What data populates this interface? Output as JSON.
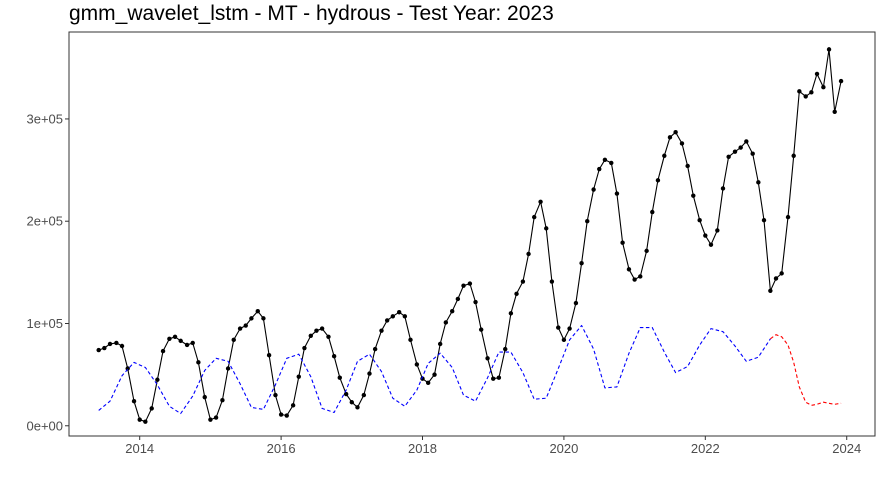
{
  "chart_data": {
    "type": "line",
    "title": "gmm_wavelet_lstm - MT - hydrous - Test Year: 2023",
    "xlabel": "",
    "ylabel": "",
    "x_range": [
      2013.0,
      2024.4
    ],
    "ylim": [
      -10000,
      385000
    ],
    "x_ticks": [
      {
        "value": 2014,
        "label": "2014"
      },
      {
        "value": 2016,
        "label": "2016"
      },
      {
        "value": 2018,
        "label": "2018"
      },
      {
        "value": 2020,
        "label": "2020"
      },
      {
        "value": 2022,
        "label": "2022"
      },
      {
        "value": 2024,
        "label": "2024"
      }
    ],
    "y_ticks": [
      {
        "value": 0,
        "label": "0e+00"
      },
      {
        "value": 100000,
        "label": "1e+05"
      },
      {
        "value": 200000,
        "label": "2e+05"
      },
      {
        "value": 300000,
        "label": "3e+05"
      }
    ],
    "grid": false,
    "legend": "none",
    "series": [
      {
        "style": "solid-with-points",
        "color": "#000000",
        "x": [
          2013.42,
          2013.5,
          2013.58,
          2013.67,
          2013.75,
          2013.83,
          2013.92,
          2014.0,
          2014.08,
          2014.17,
          2014.25,
          2014.33,
          2014.42,
          2014.5,
          2014.58,
          2014.67,
          2014.75,
          2014.83,
          2014.92,
          2015.0,
          2015.08,
          2015.17,
          2015.25,
          2015.33,
          2015.42,
          2015.5,
          2015.58,
          2015.67,
          2015.75,
          2015.83,
          2015.92,
          2016.0,
          2016.08,
          2016.17,
          2016.25,
          2016.33,
          2016.42,
          2016.5,
          2016.58,
          2016.67,
          2016.75,
          2016.83,
          2016.92,
          2017.0,
          2017.08,
          2017.17,
          2017.25,
          2017.33,
          2017.42,
          2017.5,
          2017.58,
          2017.67,
          2017.75,
          2017.83,
          2017.92,
          2018.0,
          2018.08,
          2018.17,
          2018.25,
          2018.33,
          2018.42,
          2018.5,
          2018.58,
          2018.67,
          2018.75,
          2018.83,
          2018.92,
          2019.0,
          2019.08,
          2019.17,
          2019.25,
          2019.33,
          2019.42,
          2019.5,
          2019.58,
          2019.67,
          2019.75,
          2019.83,
          2019.92,
          2020.0,
          2020.08,
          2020.17,
          2020.25,
          2020.33,
          2020.42,
          2020.5,
          2020.58,
          2020.67,
          2020.75,
          2020.83,
          2020.92,
          2021.0,
          2021.08,
          2021.17,
          2021.25,
          2021.33,
          2021.42,
          2021.5,
          2021.58,
          2021.67,
          2021.75,
          2021.83,
          2021.92,
          2022.0,
          2022.08,
          2022.17,
          2022.25,
          2022.33,
          2022.42,
          2022.5,
          2022.58,
          2022.67,
          2022.75,
          2022.83,
          2022.92,
          2023.0,
          2023.08,
          2023.17,
          2023.25,
          2023.33,
          2023.42,
          2023.5,
          2023.58,
          2023.67,
          2023.75,
          2023.83,
          2023.92
        ],
        "y": [
          74000,
          76000,
          80000,
          81000,
          78000,
          56000,
          24000,
          6000,
          4000,
          17000,
          45000,
          73000,
          85000,
          87000,
          83000,
          79000,
          81000,
          62000,
          28000,
          6000,
          8000,
          25000,
          56000,
          84000,
          95000,
          98000,
          105000,
          112000,
          105000,
          69000,
          30000,
          11000,
          10000,
          20000,
          48000,
          76000,
          88000,
          93000,
          95000,
          87000,
          68000,
          47000,
          31000,
          23000,
          18000,
          30000,
          51000,
          75000,
          93000,
          103000,
          107000,
          111000,
          107000,
          84000,
          60000,
          46000,
          42000,
          50000,
          80000,
          101000,
          112000,
          124000,
          137000,
          139000,
          121000,
          94000,
          66000,
          46000,
          47000,
          75000,
          110000,
          129000,
          141000,
          168000,
          204000,
          219000,
          193000,
          141000,
          96000,
          84000,
          95000,
          120000,
          159000,
          200000,
          231000,
          251000,
          260000,
          257000,
          227000,
          179000,
          153000,
          143000,
          146000,
          171000,
          209000,
          240000,
          264000,
          282000,
          287000,
          276000,
          254000,
          225000,
          201000,
          186000,
          177000,
          191000,
          232000,
          263000,
          268000,
          272000,
          278000,
          266000,
          238000,
          201000,
          132000,
          144000,
          149000,
          204000,
          264000,
          327000,
          322000,
          326000,
          344000,
          331000,
          368000,
          307000,
          337000
        ]
      },
      {
        "style": "dashed",
        "color": "#0000ff",
        "x": [
          2013.42,
          2013.58,
          2013.75,
          2013.92,
          2014.08,
          2014.25,
          2014.42,
          2014.58,
          2014.75,
          2014.92,
          2015.08,
          2015.25,
          2015.42,
          2015.58,
          2015.75,
          2015.92,
          2016.08,
          2016.25,
          2016.42,
          2016.58,
          2016.75,
          2016.92,
          2017.08,
          2017.25,
          2017.42,
          2017.58,
          2017.75,
          2017.92,
          2018.08,
          2018.25,
          2018.42,
          2018.58,
          2018.75,
          2018.92,
          2019.08,
          2019.25,
          2019.42,
          2019.58,
          2019.75,
          2019.92,
          2020.08,
          2020.25,
          2020.42,
          2020.58,
          2020.75,
          2020.92,
          2021.08,
          2021.25,
          2021.42,
          2021.58,
          2021.75,
          2021.92,
          2022.08,
          2022.25,
          2022.42,
          2022.58,
          2022.75,
          2022.92
        ],
        "y": [
          15000,
          24000,
          49000,
          62000,
          57000,
          40000,
          19000,
          12000,
          29000,
          54000,
          66000,
          63000,
          41000,
          18000,
          16000,
          40000,
          66000,
          70000,
          48000,
          17000,
          13000,
          35000,
          63000,
          70000,
          53000,
          27000,
          19000,
          35000,
          61000,
          71000,
          57000,
          30000,
          24000,
          47000,
          72000,
          72000,
          52000,
          26000,
          27000,
          56000,
          84000,
          98000,
          75000,
          37000,
          38000,
          71000,
          96000,
          96000,
          72000,
          52000,
          58000,
          79000,
          95000,
          92000,
          78000,
          63000,
          67000,
          85000
        ]
      },
      {
        "style": "dashed",
        "color": "#ff0000",
        "x": [
          2022.92,
          2023.0,
          2023.08,
          2023.17,
          2023.25,
          2023.33,
          2023.42,
          2023.5,
          2023.58,
          2023.67,
          2023.75,
          2023.83,
          2023.92
        ],
        "y": [
          85000,
          89000,
          87000,
          79000,
          62000,
          38000,
          23000,
          20000,
          21000,
          23000,
          22000,
          21000,
          22000
        ]
      }
    ]
  }
}
